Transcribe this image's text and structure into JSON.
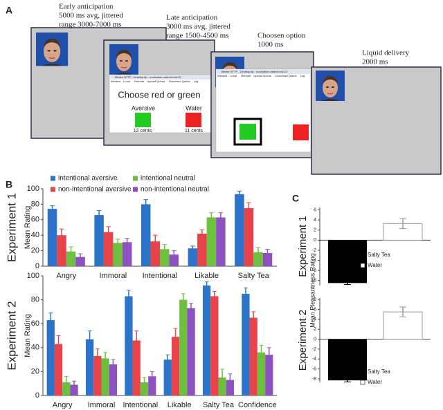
{
  "panel_labels": [
    "A",
    "B",
    "C"
  ],
  "panel_a": {
    "steps": [
      {
        "lines": [
          "Early anticipation",
          "5000 ms avg, jittered",
          "range 3000-7000 ms"
        ]
      },
      {
        "lines": [
          "Late anticipation",
          "3000 ms avg, jittered",
          "range 1500-4500 ms"
        ]
      },
      {
        "lines": [
          "Choosen option",
          "1000 ms"
        ]
      },
      {
        "lines": [
          "Liquid delivery",
          "2000 ms"
        ]
      }
    ],
    "windows": [
      {
        "title": "Bitvise SFTP - Desktop.tlp - nucleation.caltech.edu:22",
        "menu": [
          "Window",
          "Local",
          "Remote",
          "Upload Queue",
          "Download Queue",
          "Log"
        ]
      },
      {
        "title": "Bitvise SFTP - Desktop.tlp - nucleation.caltech.edu:22",
        "menu": [
          "Window",
          "Local",
          "Remote",
          "Upload Queue",
          "Download Queue",
          "Log"
        ]
      }
    ],
    "prompt": "Choose red or green",
    "options": [
      {
        "label": "Aversive",
        "price": "12 cents"
      },
      {
        "label": "Water",
        "price": "11 cents"
      }
    ]
  },
  "chart_data": [
    {
      "type": "bar",
      "side_label": "Experiment 1",
      "ylabel": "Mean Rating",
      "categories": [
        "Angry",
        "Immoral",
        "Intentional",
        "Likable",
        "Salty Tea"
      ],
      "series": [
        {
          "name": "intentional aversive",
          "color": "#2b74c9",
          "values": [
            74,
            66,
            80,
            23,
            93
          ],
          "errors": [
            4,
            6,
            6,
            3,
            4
          ]
        },
        {
          "name": "non-intentional aversive",
          "color": "#e8434b",
          "values": [
            40,
            44,
            32,
            42,
            75
          ],
          "errors": [
            8,
            7,
            8,
            5,
            7
          ]
        },
        {
          "name": "intentional neutral",
          "color": "#6cc03e",
          "values": [
            19,
            30,
            22,
            63,
            18
          ],
          "errors": [
            6,
            5,
            6,
            6,
            6
          ]
        },
        {
          "name": "non-intentional neutral",
          "color": "#8e52c0",
          "values": [
            12,
            31,
            15,
            63,
            17
          ],
          "errors": [
            4,
            5,
            5,
            6,
            5
          ]
        }
      ],
      "ylim": [
        0,
        100
      ],
      "yticks": [
        0,
        20,
        40,
        60,
        80,
        100
      ]
    },
    {
      "type": "bar",
      "side_label": "Experiment 2",
      "ylabel": "Mean Rating",
      "categories": [
        "Angry",
        "Immoral",
        "Intentional",
        "Likable",
        "Salty Tea",
        "Confidence"
      ],
      "series": [
        {
          "color": "#2b74c9",
          "values": [
            63,
            47,
            83,
            30,
            92,
            85
          ],
          "errors": [
            6,
            7,
            5,
            4,
            3,
            5
          ]
        },
        {
          "color": "#e8434b",
          "values": [
            43,
            33,
            46,
            49,
            83,
            65
          ],
          "errors": [
            7,
            6,
            8,
            7,
            4,
            5
          ]
        },
        {
          "color": "#6cc03e",
          "values": [
            11,
            31,
            11,
            80,
            15,
            36
          ],
          "errors": [
            5,
            5,
            4,
            5,
            7,
            6
          ]
        },
        {
          "color": "#8e52c0",
          "values": [
            9,
            26,
            16,
            73,
            13,
            34
          ],
          "errors": [
            3,
            4,
            4,
            4,
            5,
            6
          ]
        }
      ],
      "ylim": [
        0,
        100
      ],
      "yticks": [
        0,
        20,
        40,
        60,
        80,
        100
      ]
    },
    {
      "type": "bar",
      "side_label": "Experiment 1",
      "ylabel": "Mean Pleasantness Rating",
      "series": [
        {
          "name": "Salty Tea",
          "color": "#000000",
          "values": [
            -8.5
          ],
          "errors": [
            0.3
          ]
        },
        {
          "name": "Water",
          "color": "#ffffff",
          "values": [
            3.3
          ],
          "errors": [
            1.0
          ]
        }
      ],
      "ylim": [
        -9,
        6.5
      ],
      "yticks": [
        -8,
        -6,
        -4,
        -2,
        0,
        2,
        4,
        6
      ]
    },
    {
      "type": "bar",
      "side_label": "Experiment 2",
      "series": [
        {
          "name": "Salty Tea",
          "color": "#000000",
          "values": [
            -8.3
          ],
          "errors": [
            0.3
          ]
        },
        {
          "name": "Water",
          "color": "#ffffff",
          "values": [
            5.5
          ],
          "errors": [
            1.0
          ]
        }
      ],
      "ylim": [
        -8.7,
        8.3
      ],
      "yticks": [
        -8,
        -6,
        -4,
        -2,
        0,
        2,
        4,
        6,
        8
      ]
    }
  ]
}
